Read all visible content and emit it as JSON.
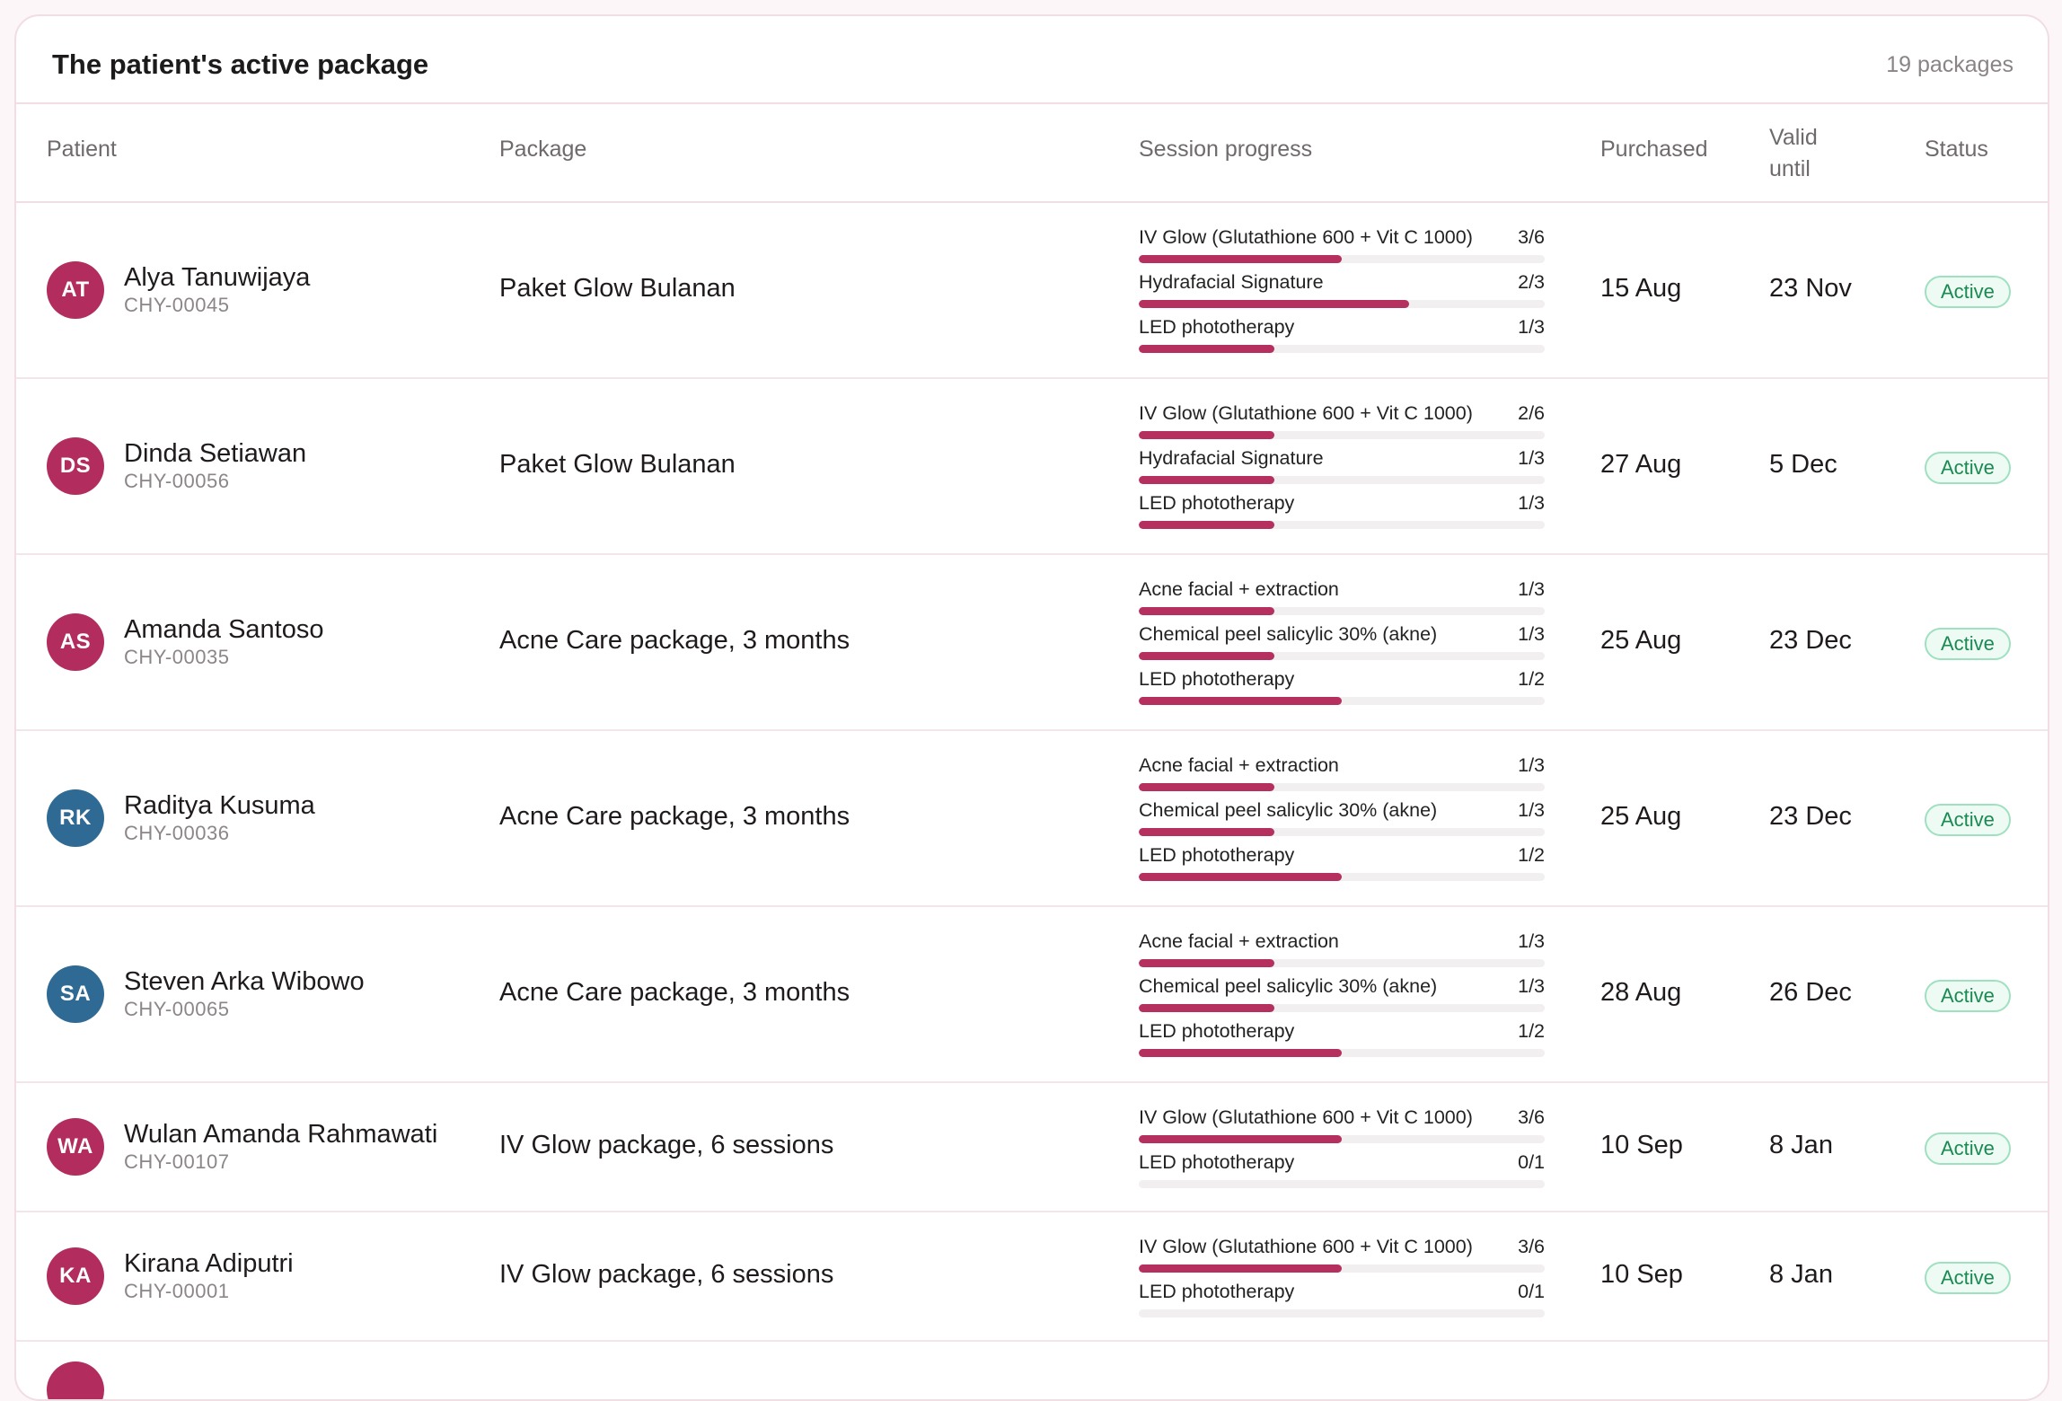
{
  "header": {
    "title": "The patient's active package",
    "count": "19 packages"
  },
  "columns": {
    "patient": "Patient",
    "package": "Package",
    "session_progress": "Session progress",
    "purchased": "Purchased",
    "valid_until": "Valid until",
    "status": "Status"
  },
  "colors": {
    "accent": "#b5305f",
    "avatar_pink": "#b22c5e",
    "avatar_blue": "#2f6a94",
    "status_green": "#1b8a52"
  },
  "rows": [
    {
      "initials": "AT",
      "avatar_color": "#b22c5e",
      "name": "Alya Tanuwijaya",
      "id": "CHY-00045",
      "package": "Paket Glow Bulanan",
      "sessions": [
        {
          "name": "IV Glow (Glutathione 600 + Vit C 1000)",
          "count": "3/6",
          "progress": 0.5
        },
        {
          "name": "Hydrafacial Signature",
          "count": "2/3",
          "progress": 0.667
        },
        {
          "name": "LED phototherapy",
          "count": "1/3",
          "progress": 0.333
        }
      ],
      "purchased": "15 Aug",
      "valid_until": "23 Nov",
      "status": "Active"
    },
    {
      "initials": "DS",
      "avatar_color": "#b22c5e",
      "name": "Dinda Setiawan",
      "id": "CHY-00056",
      "package": "Paket Glow Bulanan",
      "sessions": [
        {
          "name": "IV Glow (Glutathione 600 + Vit C 1000)",
          "count": "2/6",
          "progress": 0.333
        },
        {
          "name": "Hydrafacial Signature",
          "count": "1/3",
          "progress": 0.333
        },
        {
          "name": "LED phototherapy",
          "count": "1/3",
          "progress": 0.333
        }
      ],
      "purchased": "27 Aug",
      "valid_until": "5 Dec",
      "status": "Active"
    },
    {
      "initials": "AS",
      "avatar_color": "#b22c5e",
      "name": "Amanda Santoso",
      "id": "CHY-00035",
      "package": "Acne Care package, 3 months",
      "sessions": [
        {
          "name": "Acne facial + extraction",
          "count": "1/3",
          "progress": 0.333
        },
        {
          "name": "Chemical peel salicylic 30% (akne)",
          "count": "1/3",
          "progress": 0.333
        },
        {
          "name": "LED phototherapy",
          "count": "1/2",
          "progress": 0.5
        }
      ],
      "purchased": "25 Aug",
      "valid_until": "23 Dec",
      "status": "Active"
    },
    {
      "initials": "RK",
      "avatar_color": "#2f6a94",
      "name": "Raditya Kusuma",
      "id": "CHY-00036",
      "package": "Acne Care package, 3 months",
      "sessions": [
        {
          "name": "Acne facial + extraction",
          "count": "1/3",
          "progress": 0.333
        },
        {
          "name": "Chemical peel salicylic 30% (akne)",
          "count": "1/3",
          "progress": 0.333
        },
        {
          "name": "LED phototherapy",
          "count": "1/2",
          "progress": 0.5
        }
      ],
      "purchased": "25 Aug",
      "valid_until": "23 Dec",
      "status": "Active"
    },
    {
      "initials": "SA",
      "avatar_color": "#2f6a94",
      "name": "Steven Arka Wibowo",
      "id": "CHY-00065",
      "package": "Acne Care package, 3 months",
      "sessions": [
        {
          "name": "Acne facial + extraction",
          "count": "1/3",
          "progress": 0.333
        },
        {
          "name": "Chemical peel salicylic 30% (akne)",
          "count": "1/3",
          "progress": 0.333
        },
        {
          "name": "LED phototherapy",
          "count": "1/2",
          "progress": 0.5
        }
      ],
      "purchased": "28 Aug",
      "valid_until": "26 Dec",
      "status": "Active"
    },
    {
      "initials": "WA",
      "avatar_color": "#b22c5e",
      "name": "Wulan Amanda Rahmawati",
      "id": "CHY-00107",
      "package": "IV Glow package, 6 sessions",
      "sessions": [
        {
          "name": "IV Glow (Glutathione 600 + Vit C 1000)",
          "count": "3/6",
          "progress": 0.5
        },
        {
          "name": "LED phototherapy",
          "count": "0/1",
          "progress": 0
        }
      ],
      "purchased": "10 Sep",
      "valid_until": "8 Jan",
      "status": "Active"
    },
    {
      "initials": "KA",
      "avatar_color": "#b22c5e",
      "name": "Kirana Adiputri",
      "id": "CHY-00001",
      "package": "IV Glow package, 6 sessions",
      "sessions": [
        {
          "name": "IV Glow (Glutathione 600 + Vit C 1000)",
          "count": "3/6",
          "progress": 0.5
        },
        {
          "name": "LED phototherapy",
          "count": "0/1",
          "progress": 0
        }
      ],
      "purchased": "10 Sep",
      "valid_until": "8 Jan",
      "status": "Active"
    }
  ]
}
